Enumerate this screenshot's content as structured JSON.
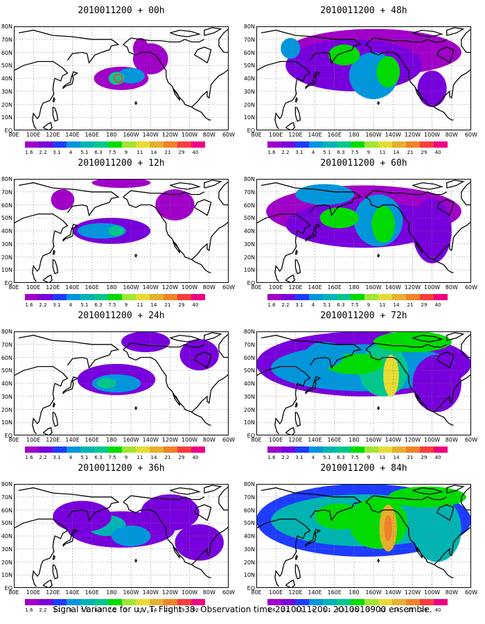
{
  "caption": "Signal Variance for u,v,T. Flight 38. Observation time 2010011200. 2010010900 ensemble.",
  "axes": {
    "lat_labels": [
      "80N",
      "70N",
      "60N",
      "50N",
      "40N",
      "30N",
      "20N",
      "10N",
      "EQ"
    ],
    "lon_labels": [
      "80E",
      "100E",
      "120E",
      "140E",
      "160E",
      "180",
      "160W",
      "140W",
      "120W",
      "100W",
      "80W",
      "60W"
    ]
  },
  "colorbar": {
    "labels": [
      "1.6",
      "2.2",
      "3.1",
      "4",
      "5.1",
      "6.3",
      "7.5",
      "9",
      "11",
      "14",
      "21",
      "29",
      "40"
    ],
    "colors": [
      "#a000c8",
      "#7800dc",
      "#1e3cff",
      "#0096dc",
      "#00b4b4",
      "#00c88c",
      "#00dc00",
      "#a0e632",
      "#e6dc32",
      "#e6af2d",
      "#f08228",
      "#fa3c3c",
      "#f00082"
    ]
  },
  "panels": [
    {
      "title": "2010011200 + 00h",
      "lead_hours": 0
    },
    {
      "title": "2010011200 + 48h",
      "lead_hours": 48
    },
    {
      "title": "2010011200 + 12h",
      "lead_hours": 12
    },
    {
      "title": "2010011200 + 60h",
      "lead_hours": 60
    },
    {
      "title": "2010011200 + 24h",
      "lead_hours": 24
    },
    {
      "title": "2010011200 + 72h",
      "lead_hours": 72
    },
    {
      "title": "2010011200 + 36h",
      "lead_hours": 36
    },
    {
      "title": "2010011200 + 84h",
      "lead_hours": 84
    }
  ]
}
